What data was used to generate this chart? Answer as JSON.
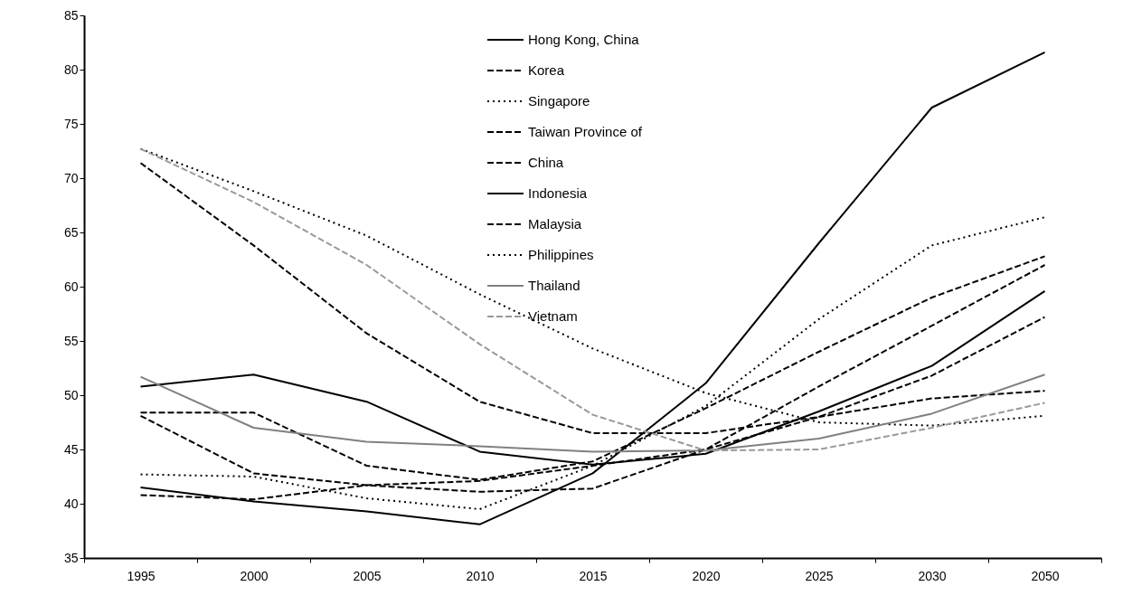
{
  "chart_data": {
    "type": "line",
    "categories": [
      "1995",
      "2000",
      "2005",
      "2010",
      "2015",
      "2020",
      "2025",
      "2030",
      "2050"
    ],
    "ylim": [
      35,
      85
    ],
    "yticks": [
      35,
      40,
      45,
      50,
      55,
      60,
      65,
      70,
      75,
      80,
      85
    ],
    "grid": false,
    "legend": "top",
    "marker": "none",
    "series": [
      {
        "name": "Hong Kong, China",
        "color": "#000000",
        "line_style": "solid",
        "values": [
          41.5,
          40.2,
          39.3,
          38.1,
          42.8,
          51.1,
          64.0,
          76.5,
          81.6
        ]
      },
      {
        "name": "Korea",
        "color": "#000000",
        "line_style": "dashed",
        "values": [
          40.8,
          40.4,
          41.7,
          42.1,
          43.5,
          45.0,
          50.8,
          56.4,
          62.0
        ]
      },
      {
        "name": "Singapore",
        "color": "#000000",
        "line_style": "dotted",
        "values": [
          42.7,
          42.5,
          40.5,
          39.5,
          43.5,
          49.0,
          57.0,
          63.8,
          66.4
        ]
      },
      {
        "name": "Taiwan Province of",
        "color": "#000000",
        "line_style": "dashed",
        "values": [
          48.4,
          48.4,
          43.5,
          42.2,
          43.9,
          48.8,
          54.0,
          59.0,
          62.8
        ]
      },
      {
        "name": "China",
        "color": "#000000",
        "line_style": "dashed",
        "values": [
          48.1,
          42.8,
          41.7,
          41.1,
          41.4,
          45.0,
          48.0,
          51.8,
          57.2
        ]
      },
      {
        "name": "Indonesia",
        "color": "#000000",
        "line_style": "solid",
        "values": [
          50.8,
          51.9,
          49.4,
          44.8,
          43.6,
          44.6,
          48.5,
          52.7,
          59.6
        ]
      },
      {
        "name": "Malaysia",
        "color": "#000000",
        "line_style": "dashed",
        "values": [
          71.4,
          63.8,
          55.7,
          49.4,
          46.5,
          46.5,
          48.0,
          49.7,
          50.4
        ]
      },
      {
        "name": "Philippines",
        "color": "#000000",
        "line_style": "dotted",
        "values": [
          72.7,
          68.8,
          64.7,
          59.3,
          54.3,
          50.2,
          47.5,
          47.2,
          48.1
        ]
      },
      {
        "name": "Thailand",
        "color": "#808080",
        "line_style": "solid",
        "values": [
          51.7,
          47.0,
          45.7,
          45.3,
          44.8,
          44.9,
          46.0,
          48.3,
          51.9
        ]
      },
      {
        "name": "Vietnam",
        "color": "#999999",
        "line_style": "dashed",
        "values": [
          72.7,
          67.8,
          62.0,
          54.7,
          48.2,
          44.9,
          45.0,
          47.0,
          49.3
        ]
      }
    ]
  }
}
